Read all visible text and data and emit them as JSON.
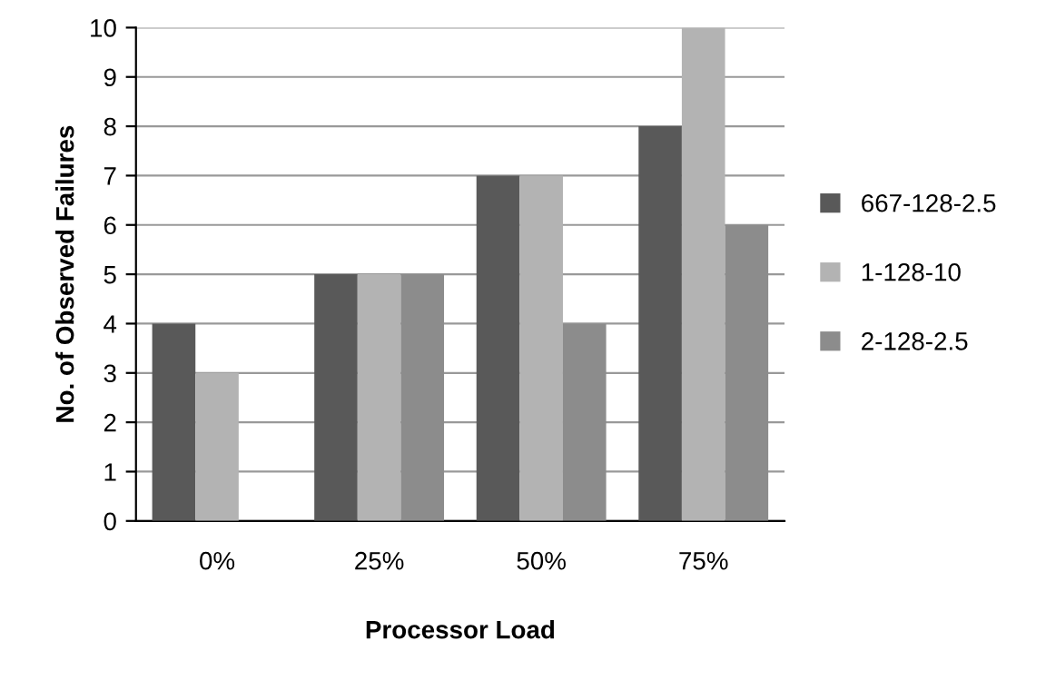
{
  "chart_data": {
    "type": "bar",
    "xlabel": "Processor Load",
    "ylabel": "No. of Observed Failures",
    "categories": [
      "0%",
      "25%",
      "50%",
      "75%"
    ],
    "series": [
      {
        "name": "667-128-2.5",
        "color": "#595959",
        "values": [
          4,
          5,
          7,
          8
        ]
      },
      {
        "name": "1-128-10",
        "color": "#b3b3b3",
        "values": [
          3,
          5,
          7,
          10
        ]
      },
      {
        "name": "2-128-2.5",
        "color": "#8c8c8c",
        "values": [
          0,
          5,
          4,
          6
        ]
      }
    ],
    "ylim": [
      0,
      10
    ],
    "yticks": [
      0,
      1,
      2,
      3,
      4,
      5,
      6,
      7,
      8,
      9,
      10
    ],
    "grid": "y",
    "legend": "right"
  }
}
